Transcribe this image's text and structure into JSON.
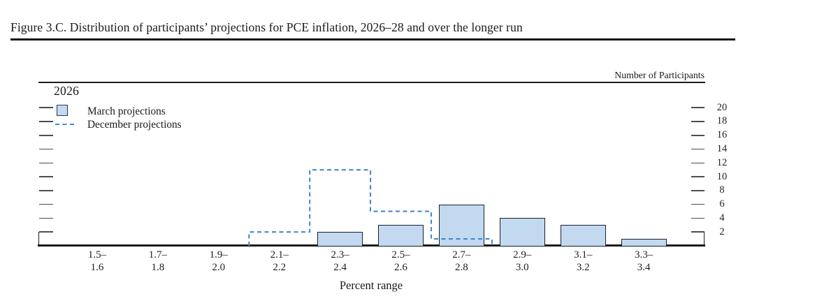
{
  "figure": {
    "title": "Figure 3.C. Distribution of participants’ projections for PCE inflation, 2026–28 and over the longer run"
  },
  "panel": {
    "year_label": "2026",
    "right_axis_title": "Number of Participants",
    "x_axis_title": "Percent range"
  },
  "legend": {
    "march": "March projections",
    "december": "December projections"
  },
  "colors": {
    "bar_fill": "#c2d9f0",
    "bar_border": "#1b202b",
    "dashed_line": "#4389cf",
    "axis": "#1c1c1c",
    "tick": "#4d4d4d",
    "text": "#1a1a1a"
  },
  "chart_data": {
    "type": "bar",
    "title": "2026",
    "xlabel": "Percent range",
    "ylabel": "Number of Participants",
    "categories": [
      "1.5–1.6",
      "1.7–1.8",
      "1.9–2.0",
      "2.1–2.2",
      "2.3–2.4",
      "2.5–2.6",
      "2.7–2.8",
      "2.9–3.0",
      "3.1–3.2",
      "3.3–3.4"
    ],
    "category_labels": [
      {
        "line1": "1.5–",
        "line2": "1.6"
      },
      {
        "line1": "1.7–",
        "line2": "1.8"
      },
      {
        "line1": "1.9–",
        "line2": "2.0"
      },
      {
        "line1": "2.1–",
        "line2": "2.2"
      },
      {
        "line1": "2.3–",
        "line2": "2.4"
      },
      {
        "line1": "2.5–",
        "line2": "2.6"
      },
      {
        "line1": "2.7–",
        "line2": "2.8"
      },
      {
        "line1": "2.9–",
        "line2": "3.0"
      },
      {
        "line1": "3.1–",
        "line2": "3.2"
      },
      {
        "line1": "3.3–",
        "line2": "3.4"
      }
    ],
    "series": [
      {
        "name": "March projections",
        "style": "bar",
        "values": [
          0,
          0,
          0,
          0,
          2,
          3,
          6,
          4,
          3,
          1
        ]
      },
      {
        "name": "December projections",
        "style": "dashed-step",
        "values": [
          0,
          0,
          0,
          2,
          11,
          5,
          1,
          0,
          0,
          0
        ]
      }
    ],
    "y_ticks": [
      2,
      4,
      6,
      8,
      10,
      12,
      14,
      16,
      18,
      20
    ],
    "ylim": [
      0,
      23.5
    ],
    "grid": false,
    "legend_position": "top-left"
  }
}
